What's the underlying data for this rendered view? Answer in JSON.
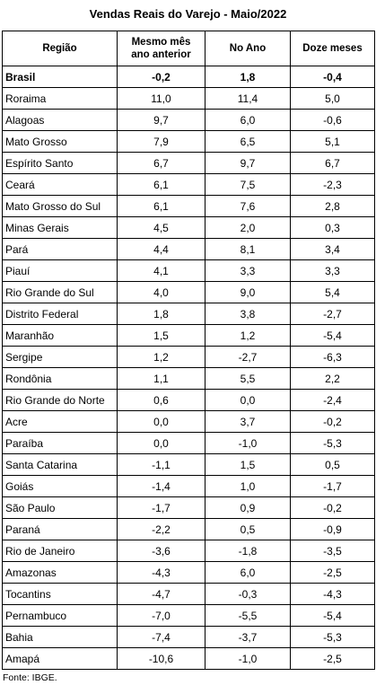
{
  "title": "Vendas Reais do Varejo - Maio/2022",
  "table": {
    "header": [
      "Região",
      "Mesmo mês ano anterior",
      "No Ano",
      "Doze meses"
    ],
    "rows": [
      [
        "Brasil",
        "-0,2",
        "1,8",
        "-0,4"
      ],
      [
        "Roraima",
        "11,0",
        "11,4",
        "5,0"
      ],
      [
        "Alagoas",
        "9,7",
        "6,0",
        "-0,6"
      ],
      [
        "Mato Grosso",
        "7,9",
        "6,5",
        "5,1"
      ],
      [
        "Espírito Santo",
        "6,7",
        "9,7",
        "6,7"
      ],
      [
        "Ceará",
        "6,1",
        "7,5",
        "-2,3"
      ],
      [
        "Mato Grosso do Sul",
        "6,1",
        "7,6",
        "2,8"
      ],
      [
        "Minas Gerais",
        "4,5",
        "2,0",
        "0,3"
      ],
      [
        "Pará",
        "4,4",
        "8,1",
        "3,4"
      ],
      [
        "Piauí",
        "4,1",
        "3,3",
        "3,3"
      ],
      [
        "Rio Grande do Sul",
        "4,0",
        "9,0",
        "5,4"
      ],
      [
        "Distrito Federal",
        "1,8",
        "3,8",
        "-2,7"
      ],
      [
        "Maranhão",
        "1,5",
        "1,2",
        "-5,4"
      ],
      [
        "Sergipe",
        "1,2",
        "-2,7",
        "-6,3"
      ],
      [
        "Rondônia",
        "1,1",
        "5,5",
        "2,2"
      ],
      [
        "Rio Grande do Norte",
        "0,6",
        "0,0",
        "-2,4"
      ],
      [
        "Acre",
        "0,0",
        "3,7",
        "-0,2"
      ],
      [
        "Paraíba",
        "0,0",
        "-1,0",
        "-5,3"
      ],
      [
        "Santa Catarina",
        "-1,1",
        "1,5",
        "0,5"
      ],
      [
        "Goiás",
        "-1,4",
        "1,0",
        "-1,7"
      ],
      [
        "São Paulo",
        "-1,7",
        "0,9",
        "-0,2"
      ],
      [
        "Paraná",
        "-2,2",
        "0,5",
        "-0,9"
      ],
      [
        "Rio de Janeiro",
        "-3,6",
        "-1,8",
        "-3,5"
      ],
      [
        "Amazonas",
        "-4,3",
        "6,0",
        "-2,5"
      ],
      [
        "Tocantins",
        "-4,7",
        "-0,3",
        "-4,3"
      ],
      [
        "Pernambuco",
        "-7,0",
        "-5,5",
        "-5,4"
      ],
      [
        "Bahia",
        "-7,4",
        "-3,7",
        "-5,3"
      ],
      [
        "Amapá",
        "-10,6",
        "-1,0",
        "-2,5"
      ]
    ]
  },
  "source": "Fonte: IBGE."
}
